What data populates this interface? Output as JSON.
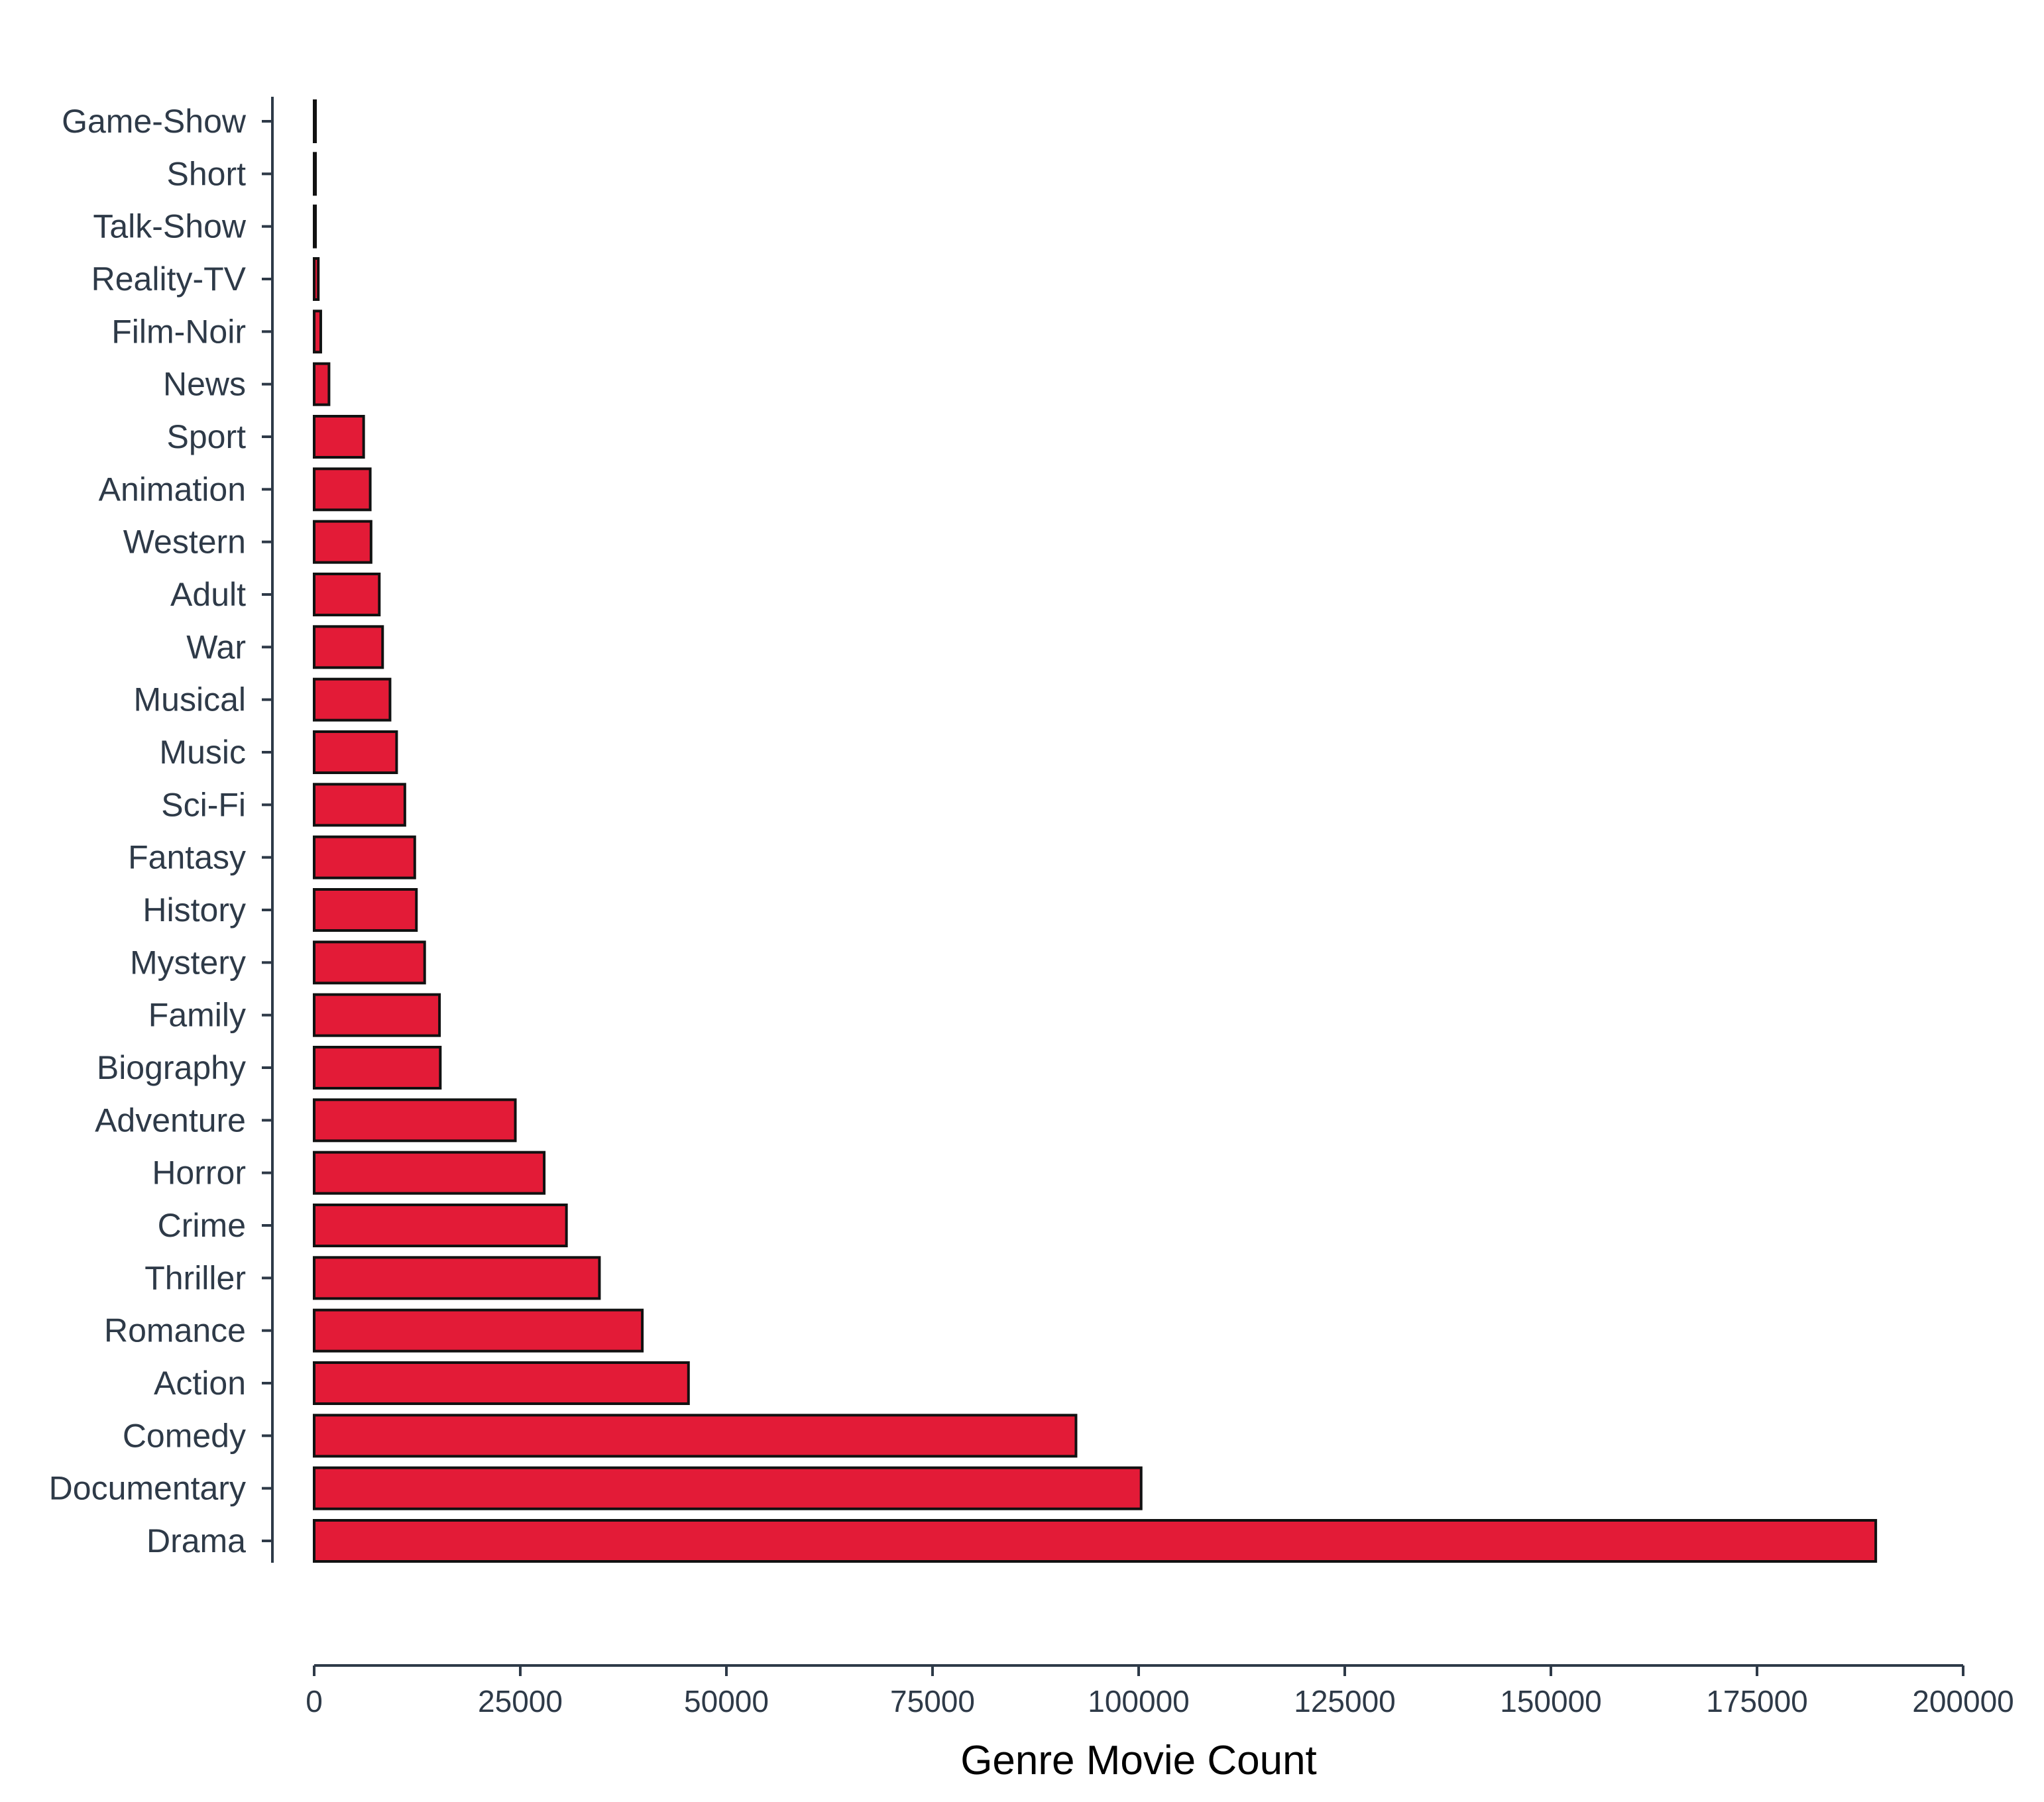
{
  "chart_data": {
    "type": "bar",
    "orientation": "horizontal",
    "categories": [
      "Game-Show",
      "Short",
      "Talk-Show",
      "Reality-TV",
      "Film-Noir",
      "News",
      "Sport",
      "Animation",
      "Western",
      "Adult",
      "War",
      "Musical",
      "Music",
      "Sci-Fi",
      "Fantasy",
      "History",
      "Mystery",
      "Family",
      "Biography",
      "Adventure",
      "Horror",
      "Crime",
      "Thriller",
      "Romance",
      "Action",
      "Comedy",
      "Documentary",
      "Drama"
    ],
    "values": [
      20,
      40,
      80,
      500,
      800,
      1800,
      6000,
      6800,
      6900,
      7900,
      8300,
      9200,
      10000,
      11000,
      12200,
      12400,
      13400,
      15200,
      15300,
      24400,
      27900,
      30600,
      34600,
      39800,
      45400,
      92400,
      100300,
      189400
    ],
    "title": "",
    "xlabel": "Genre Movie Count",
    "ylabel": "",
    "xlim": [
      0,
      200000
    ],
    "xticks": [
      "0",
      "25000",
      "50000",
      "75000",
      "100000",
      "125000",
      "150000",
      "175000",
      "200000"
    ],
    "bar_color": "#e31b37",
    "bar_edge_color": "#111111",
    "grid": false,
    "legend": "none"
  }
}
